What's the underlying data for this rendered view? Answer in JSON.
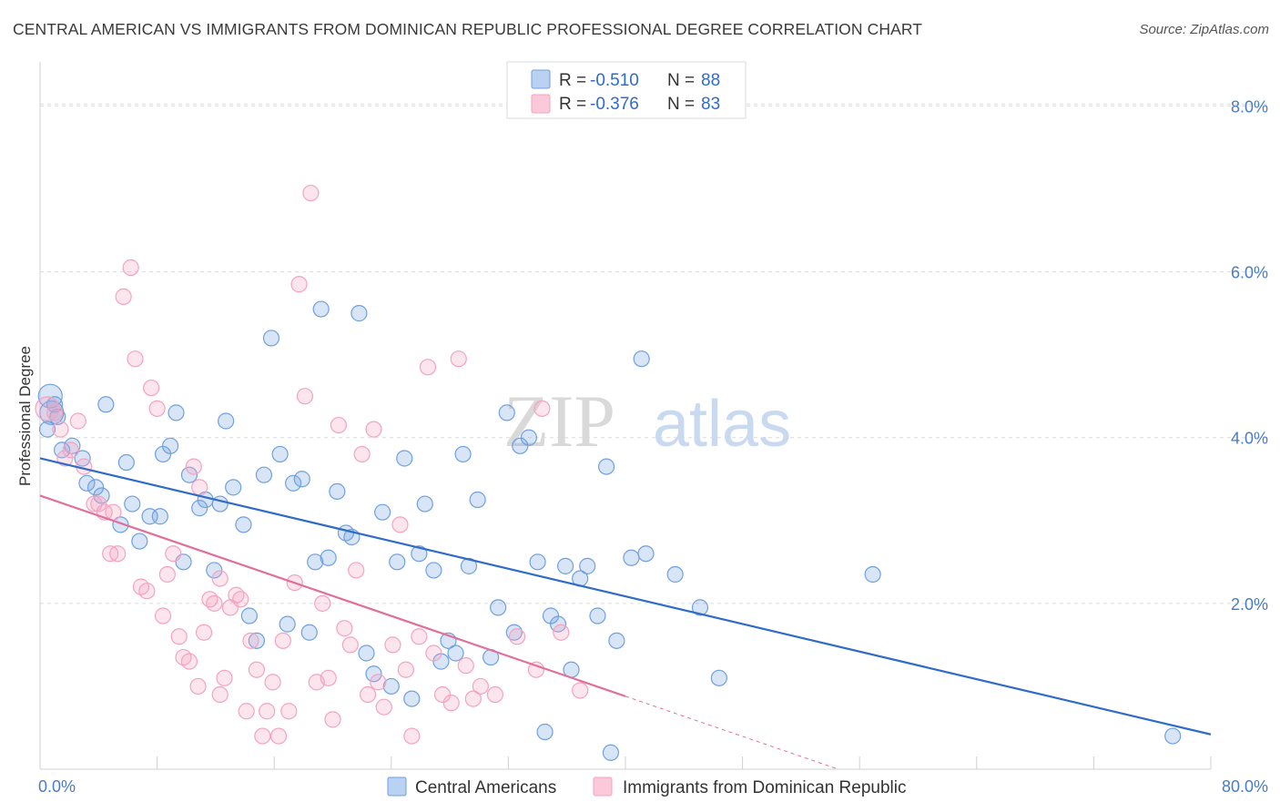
{
  "title": "CENTRAL AMERICAN VS IMMIGRANTS FROM DOMINICAN REPUBLIC PROFESSIONAL DEGREE CORRELATION CHART",
  "source": "Source: ZipAtlas.com",
  "watermark": {
    "zip": "ZIP",
    "atlas": "atlas"
  },
  "legend": {
    "r_label": "R =",
    "n_label": "N =",
    "rows": [
      {
        "r": "-0.510",
        "n": "88",
        "color": "#6fa0e0"
      },
      {
        "r": "-0.376",
        "n": "83",
        "color": "#f4a3bf"
      }
    ]
  },
  "bottom_legend": [
    "Central Americans",
    "Immigrants from Dominican Republic"
  ],
  "chart_data": {
    "type": "scatter",
    "title": "CENTRAL AMERICAN VS IMMIGRANTS FROM DOMINICAN REPUBLIC PROFESSIONAL DEGREE CORRELATION CHART",
    "xlabel": "",
    "ylabel": "Professional Degree",
    "xlim": [
      0,
      80
    ],
    "ylim": [
      0,
      8.4
    ],
    "x_tick_labels": [
      "0.0%",
      "80.0%"
    ],
    "y_ticks": [
      2,
      4,
      6,
      8
    ],
    "y_tick_labels": [
      "2.0%",
      "4.0%",
      "6.0%",
      "8.0%"
    ],
    "grid": "horizontal dashed",
    "legend_position": "top-center",
    "series": [
      {
        "name": "Central Americans",
        "color": "#6fa0e0",
        "line_color": "#2f6bc8",
        "r": -0.51,
        "n": 88,
        "trend": {
          "x0": 0,
          "y0": 3.75,
          "x1": 80,
          "y1": 0.42
        },
        "points": [
          [
            0.7,
            4.5
          ],
          [
            0.8,
            4.3
          ],
          [
            1.2,
            4.25
          ],
          [
            1.5,
            3.85
          ],
          [
            2.2,
            3.9
          ],
          [
            2.9,
            3.75
          ],
          [
            3.2,
            3.45
          ],
          [
            3.8,
            3.4
          ],
          [
            4.2,
            3.3
          ],
          [
            4.5,
            4.4
          ],
          [
            5.5,
            2.95
          ],
          [
            5.9,
            3.7
          ],
          [
            6.3,
            3.2
          ],
          [
            6.8,
            2.75
          ],
          [
            7.5,
            3.05
          ],
          [
            8.2,
            3.05
          ],
          [
            8.4,
            3.8
          ],
          [
            8.9,
            3.9
          ],
          [
            9.3,
            4.3
          ],
          [
            9.8,
            2.5
          ],
          [
            10.2,
            3.55
          ],
          [
            10.9,
            3.15
          ],
          [
            11.3,
            3.25
          ],
          [
            11.9,
            2.4
          ],
          [
            12.3,
            3.2
          ],
          [
            12.7,
            4.2
          ],
          [
            13.2,
            3.4
          ],
          [
            13.9,
            2.95
          ],
          [
            14.3,
            1.85
          ],
          [
            14.8,
            1.55
          ],
          [
            15.3,
            3.55
          ],
          [
            15.8,
            5.2
          ],
          [
            16.4,
            3.8
          ],
          [
            16.9,
            1.75
          ],
          [
            17.3,
            3.45
          ],
          [
            17.9,
            3.5
          ],
          [
            18.4,
            1.65
          ],
          [
            18.8,
            2.5
          ],
          [
            19.2,
            5.55
          ],
          [
            19.7,
            2.55
          ],
          [
            20.3,
            3.35
          ],
          [
            20.9,
            2.85
          ],
          [
            21.3,
            2.8
          ],
          [
            21.8,
            5.5
          ],
          [
            22.3,
            1.4
          ],
          [
            22.8,
            1.15
          ],
          [
            23.4,
            3.1
          ],
          [
            24.0,
            1.0
          ],
          [
            24.4,
            2.5
          ],
          [
            24.9,
            3.75
          ],
          [
            25.4,
            0.85
          ],
          [
            25.9,
            2.6
          ],
          [
            26.3,
            3.2
          ],
          [
            26.9,
            2.4
          ],
          [
            27.4,
            1.3
          ],
          [
            27.9,
            1.55
          ],
          [
            28.4,
            1.4
          ],
          [
            28.9,
            3.8
          ],
          [
            29.3,
            2.45
          ],
          [
            29.9,
            3.25
          ],
          [
            30.8,
            1.35
          ],
          [
            31.3,
            1.95
          ],
          [
            31.9,
            4.3
          ],
          [
            32.4,
            1.65
          ],
          [
            32.8,
            3.9
          ],
          [
            33.4,
            4.0
          ],
          [
            34.0,
            2.5
          ],
          [
            34.5,
            0.45
          ],
          [
            34.9,
            1.85
          ],
          [
            35.4,
            1.75
          ],
          [
            35.9,
            2.45
          ],
          [
            36.3,
            1.2
          ],
          [
            36.9,
            2.3
          ],
          [
            37.4,
            2.45
          ],
          [
            38.1,
            1.85
          ],
          [
            38.7,
            3.65
          ],
          [
            39.0,
            0.2
          ],
          [
            39.4,
            1.55
          ],
          [
            40.4,
            2.55
          ],
          [
            41.1,
            4.95
          ],
          [
            41.4,
            2.6
          ],
          [
            43.4,
            2.35
          ],
          [
            45.1,
            1.95
          ],
          [
            46.4,
            1.1
          ],
          [
            56.9,
            2.35
          ],
          [
            77.4,
            0.4
          ],
          [
            0.5,
            4.1
          ],
          [
            1.0,
            4.4
          ]
        ]
      },
      {
        "name": "Immigrants from Dominican Republic",
        "color": "#f4a3bf",
        "line_color": "#e0709a",
        "r": -0.376,
        "n": 83,
        "trend": {
          "x0": 0,
          "y0": 3.3,
          "x1": 40,
          "y1": 0.88
        },
        "points": [
          [
            0.5,
            4.35
          ],
          [
            1.0,
            4.3
          ],
          [
            1.4,
            4.1
          ],
          [
            1.7,
            3.75
          ],
          [
            2.1,
            3.85
          ],
          [
            2.6,
            4.2
          ],
          [
            3.0,
            3.65
          ],
          [
            3.7,
            3.2
          ],
          [
            4.0,
            3.2
          ],
          [
            4.4,
            3.1
          ],
          [
            4.8,
            2.6
          ],
          [
            5.0,
            3.1
          ],
          [
            5.3,
            2.6
          ],
          [
            5.7,
            5.7
          ],
          [
            6.2,
            6.05
          ],
          [
            6.5,
            4.95
          ],
          [
            6.9,
            2.2
          ],
          [
            7.3,
            2.15
          ],
          [
            7.6,
            4.6
          ],
          [
            8.0,
            4.35
          ],
          [
            8.4,
            1.85
          ],
          [
            8.7,
            2.35
          ],
          [
            9.1,
            2.6
          ],
          [
            9.5,
            1.6
          ],
          [
            9.8,
            1.35
          ],
          [
            10.2,
            1.3
          ],
          [
            10.5,
            3.65
          ],
          [
            10.9,
            3.4
          ],
          [
            11.2,
            1.65
          ],
          [
            11.6,
            2.05
          ],
          [
            11.9,
            2.0
          ],
          [
            12.3,
            0.9
          ],
          [
            12.6,
            1.1
          ],
          [
            13.0,
            1.95
          ],
          [
            13.4,
            2.1
          ],
          [
            13.7,
            2.05
          ],
          [
            14.1,
            0.7
          ],
          [
            14.4,
            1.55
          ],
          [
            14.8,
            1.2
          ],
          [
            15.2,
            0.4
          ],
          [
            15.5,
            0.7
          ],
          [
            15.9,
            1.05
          ],
          [
            16.3,
            0.4
          ],
          [
            16.6,
            1.55
          ],
          [
            17.0,
            0.7
          ],
          [
            17.4,
            2.25
          ],
          [
            17.7,
            5.85
          ],
          [
            18.1,
            4.5
          ],
          [
            18.5,
            6.95
          ],
          [
            18.9,
            1.05
          ],
          [
            19.3,
            2.0
          ],
          [
            19.7,
            1.1
          ],
          [
            20.0,
            0.6
          ],
          [
            20.4,
            4.15
          ],
          [
            20.8,
            1.7
          ],
          [
            21.2,
            1.5
          ],
          [
            21.6,
            2.4
          ],
          [
            22.0,
            3.8
          ],
          [
            22.4,
            0.9
          ],
          [
            22.8,
            4.1
          ],
          [
            23.1,
            1.05
          ],
          [
            23.5,
            0.75
          ],
          [
            24.1,
            1.5
          ],
          [
            24.6,
            2.95
          ],
          [
            25.0,
            1.2
          ],
          [
            25.4,
            0.4
          ],
          [
            25.9,
            1.6
          ],
          [
            26.5,
            4.85
          ],
          [
            26.9,
            1.4
          ],
          [
            27.5,
            0.9
          ],
          [
            28.1,
            0.8
          ],
          [
            28.6,
            4.95
          ],
          [
            29.1,
            1.25
          ],
          [
            29.6,
            0.85
          ],
          [
            30.1,
            1.0
          ],
          [
            31.1,
            0.9
          ],
          [
            32.6,
            1.6
          ],
          [
            33.9,
            1.2
          ],
          [
            34.3,
            4.35
          ],
          [
            35.6,
            1.65
          ],
          [
            36.9,
            0.95
          ],
          [
            12.3,
            2.3
          ],
          [
            10.8,
            1.0
          ]
        ]
      }
    ]
  }
}
